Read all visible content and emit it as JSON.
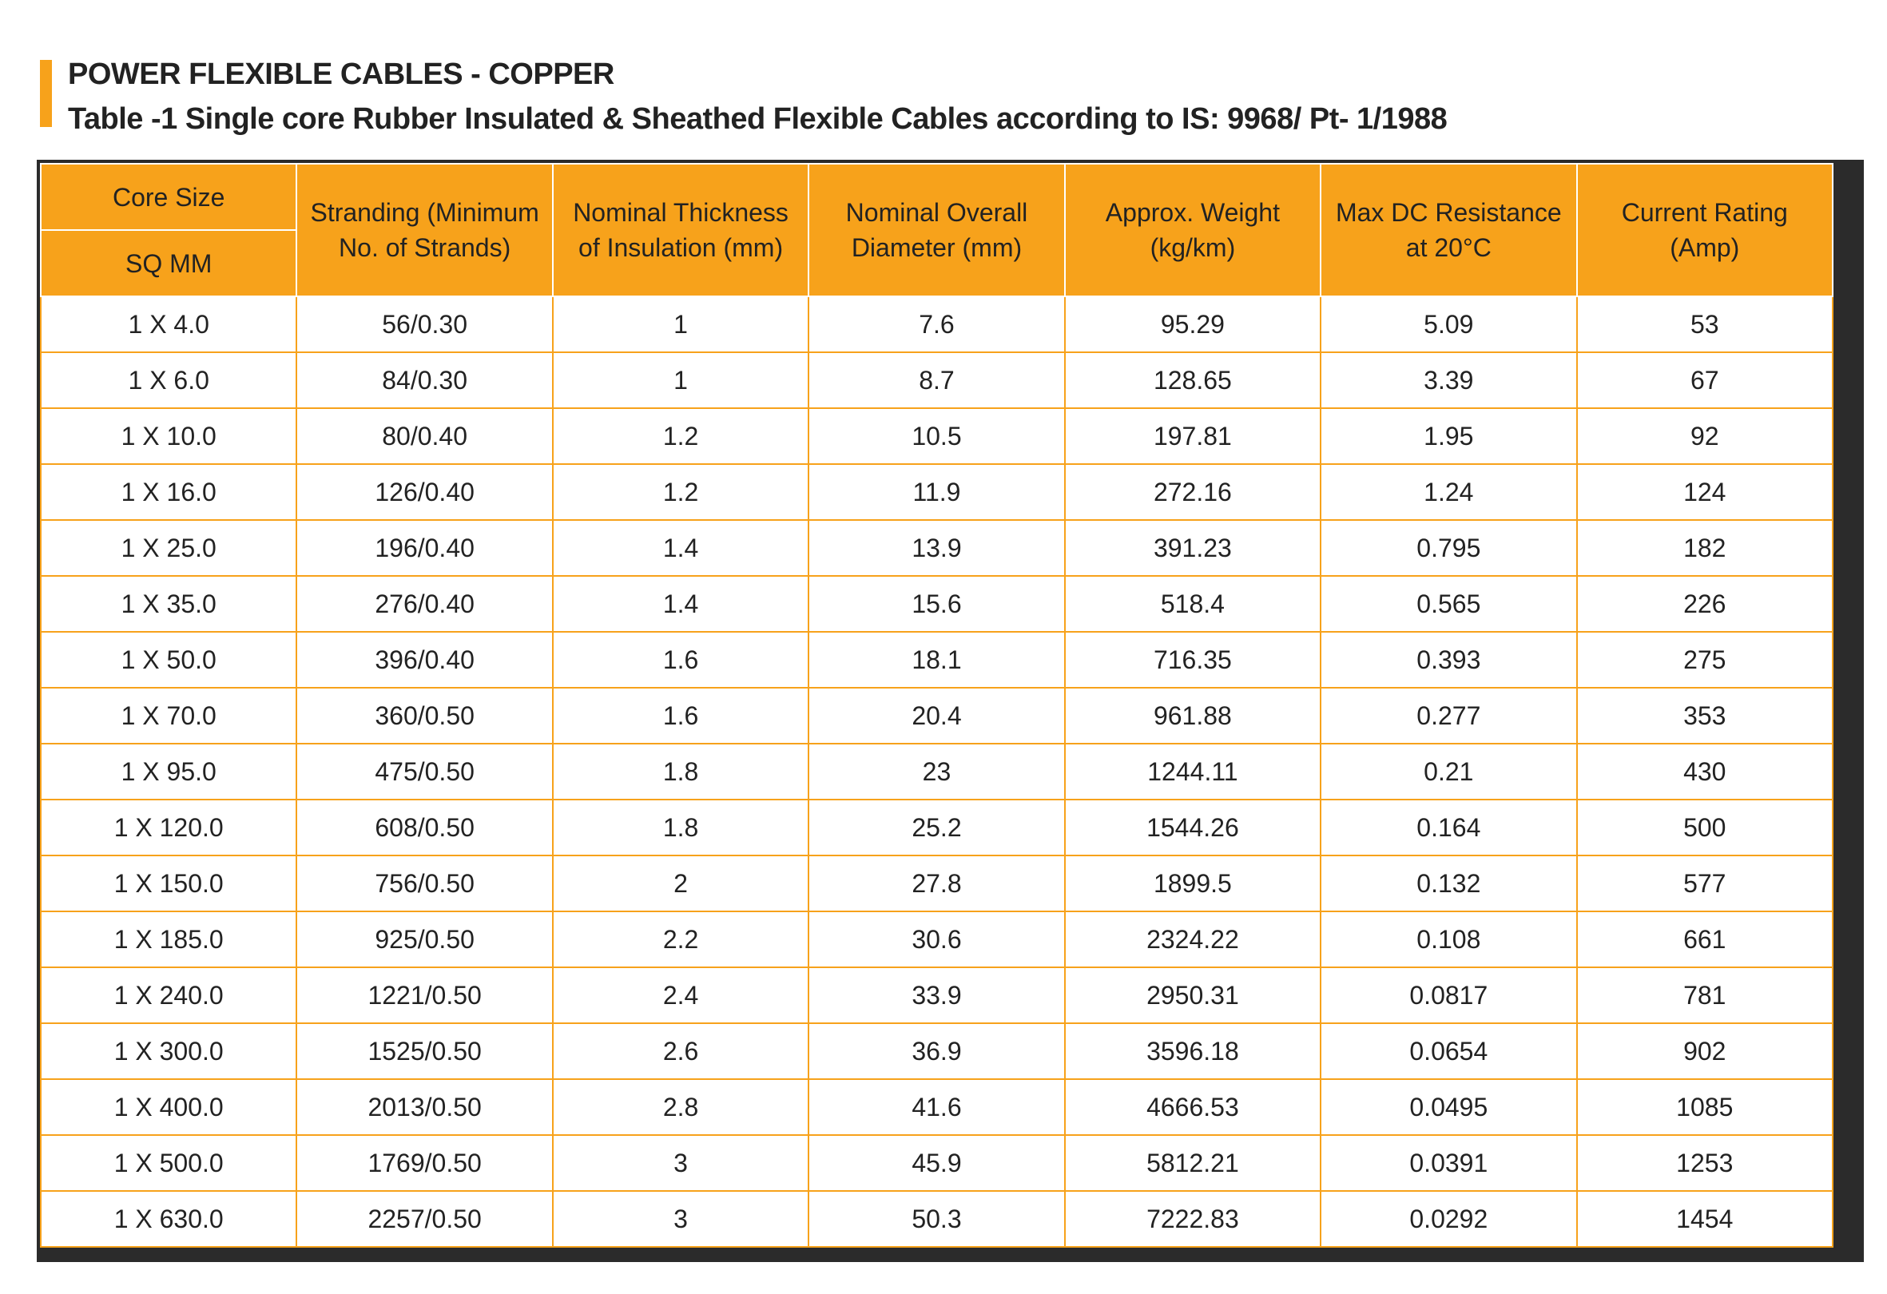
{
  "header": {
    "title": "POWER FLEXIBLE CABLES - COPPER",
    "subtitle": "Table -1 Single core Rubber Insulated & Sheathed Flexible Cables according to IS: 9968/ Pt- 1/1988"
  },
  "table": {
    "first_header": [
      "Core Size",
      "SQ MM"
    ],
    "headers": [
      [
        "Stranding (Minimum",
        "No. of Strands)"
      ],
      [
        "Nominal Thickness",
        "of Insulation (mm)"
      ],
      [
        "Nominal Overall",
        "Diameter (mm)"
      ],
      [
        "Approx. Weight",
        "(kg/km)"
      ],
      [
        "Max DC Resistance",
        "at 20°C"
      ],
      [
        "Current Rating",
        "(Amp)"
      ]
    ],
    "rows": [
      [
        "1 X 4.0",
        "56/0.30",
        "1",
        "7.6",
        "95.29",
        "5.09",
        "53"
      ],
      [
        "1 X 6.0",
        "84/0.30",
        "1",
        "8.7",
        "128.65",
        "3.39",
        "67"
      ],
      [
        "1 X 10.0",
        "80/0.40",
        "1.2",
        "10.5",
        "197.81",
        "1.95",
        "92"
      ],
      [
        "1 X 16.0",
        "126/0.40",
        "1.2",
        "11.9",
        "272.16",
        "1.24",
        "124"
      ],
      [
        "1 X 25.0",
        "196/0.40",
        "1.4",
        "13.9",
        "391.23",
        "0.795",
        "182"
      ],
      [
        "1 X 35.0",
        "276/0.40",
        "1.4",
        "15.6",
        "518.4",
        "0.565",
        "226"
      ],
      [
        "1 X 50.0",
        "396/0.40",
        "1.6",
        "18.1",
        "716.35",
        "0.393",
        "275"
      ],
      [
        "1 X 70.0",
        "360/0.50",
        "1.6",
        "20.4",
        "961.88",
        "0.277",
        "353"
      ],
      [
        "1 X 95.0",
        "475/0.50",
        "1.8",
        "23",
        "1244.11",
        "0.21",
        "430"
      ],
      [
        "1 X 120.0",
        "608/0.50",
        "1.8",
        "25.2",
        "1544.26",
        "0.164",
        "500"
      ],
      [
        "1 X 150.0",
        "756/0.50",
        "2",
        "27.8",
        "1899.5",
        "0.132",
        "577"
      ],
      [
        "1 X 185.0",
        "925/0.50",
        "2.2",
        "30.6",
        "2324.22",
        "0.108",
        "661"
      ],
      [
        "1 X 240.0",
        "1221/0.50",
        "2.4",
        "33.9",
        "2950.31",
        "0.0817",
        "781"
      ],
      [
        "1 X 300.0",
        "1525/0.50",
        "2.6",
        "36.9",
        "3596.18",
        "0.0654",
        "902"
      ],
      [
        "1 X 400.0",
        "2013/0.50",
        "2.8",
        "41.6",
        "4666.53",
        "0.0495",
        "1085"
      ],
      [
        "1 X 500.0",
        "1769/0.50",
        "3",
        "45.9",
        "5812.21",
        "0.0391",
        "1253"
      ],
      [
        "1 X 630.0",
        "2257/0.50",
        "3",
        "50.3",
        "7222.83",
        "0.0292",
        "1454"
      ]
    ]
  }
}
